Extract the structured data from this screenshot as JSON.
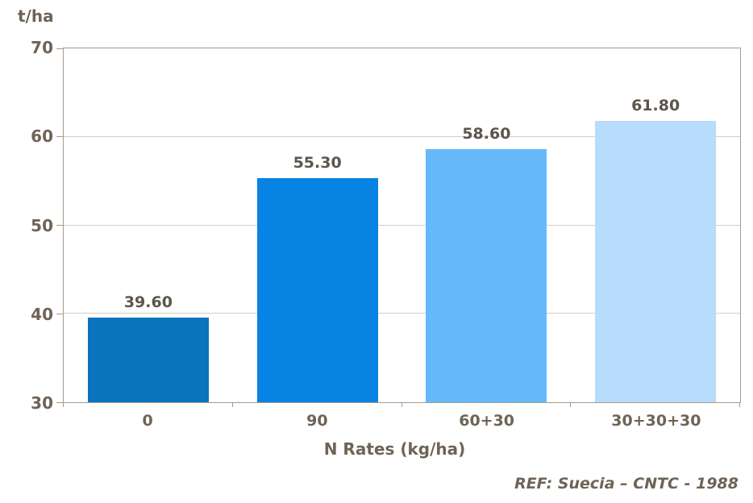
{
  "chart_data": {
    "type": "bar",
    "unit_label": "t/ha",
    "xlabel": "N Rates (kg/ha)",
    "categories": [
      "0",
      "90",
      "60+30",
      "30+30+30"
    ],
    "values": [
      39.6,
      55.3,
      58.6,
      61.8
    ],
    "value_labels": [
      "39.60",
      "55.30",
      "58.60",
      "61.80"
    ],
    "yticks": [
      30,
      40,
      50,
      60,
      70
    ],
    "ylim": [
      30,
      70
    ],
    "grid": true,
    "legend": "none",
    "bar_colors": [
      "#0a74bd",
      "#0683e3",
      "#65b9fb",
      "#b8dcfb"
    ],
    "axis_color": "#a39a8b",
    "gridline_color": "#d3cdc3",
    "label_color": "#6e6355",
    "value_label_color": "#5c554b",
    "reference": "REF: Suecia – CNTC - 1988"
  }
}
